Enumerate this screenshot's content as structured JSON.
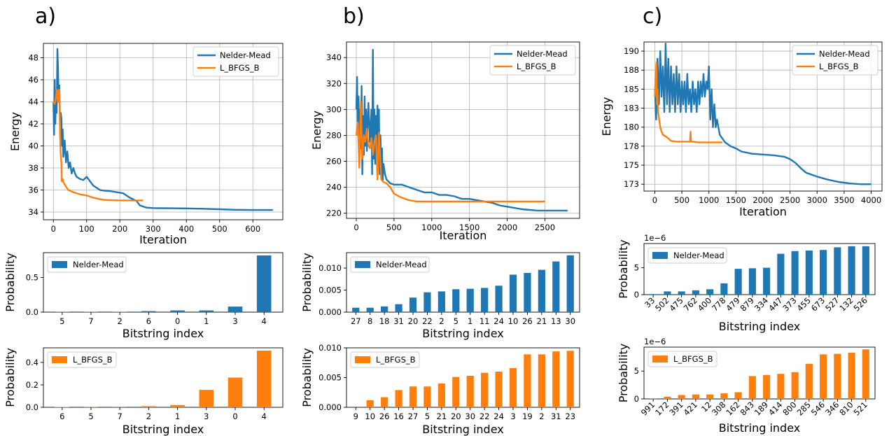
{
  "panel_labels": [
    "a)",
    "b)",
    "c)"
  ],
  "colors": {
    "nelder_mead": "#1f77b4",
    "lbfgsb": "#ff7f0e",
    "grid": "#b0b0b0"
  },
  "chart_data": [
    {
      "id": "a-energy",
      "type": "line",
      "xlabel": "Iteration",
      "ylabel": "Energy",
      "xlim": [
        -30,
        690
      ],
      "ylim": [
        33.3,
        49.3
      ],
      "xticks": [
        0,
        100,
        200,
        300,
        400,
        500,
        600
      ],
      "yticks": [
        34,
        36,
        38,
        40,
        42,
        44,
        46,
        48
      ],
      "grid": true,
      "legend": "top-right",
      "series": [
        {
          "name": "Nelder-Mead",
          "color": "#1f77b4",
          "x": [
            0,
            2,
            4,
            6,
            8,
            10,
            12,
            14,
            16,
            18,
            20,
            22,
            24,
            26,
            28,
            30,
            34,
            38,
            42,
            46,
            50,
            55,
            60,
            65,
            70,
            80,
            90,
            100,
            110,
            120,
            130,
            140,
            150,
            170,
            190,
            210,
            230,
            250,
            260,
            270,
            280,
            290,
            300,
            320,
            350,
            400,
            450,
            500,
            550,
            600,
            660
          ],
          "y": [
            44,
            41,
            46,
            42,
            45,
            43,
            48.8,
            47,
            44,
            45.5,
            42,
            43,
            42.5,
            40,
            41.5,
            39,
            40.5,
            38.5,
            39.5,
            38,
            38.5,
            37.5,
            38,
            37.5,
            37.2,
            37,
            36.9,
            37.2,
            36.8,
            36.4,
            36.2,
            36,
            35.95,
            35.9,
            35.8,
            35.7,
            35.3,
            35,
            34.6,
            34.5,
            34.4,
            34.38,
            34.36,
            34.35,
            34.34,
            34.33,
            34.3,
            34.25,
            34.2,
            34.18,
            34.18
          ]
        },
        {
          "name": "L_BFGS_B",
          "color": "#ff7f0e",
          "x": [
            0,
            4,
            8,
            10,
            13,
            15,
            18,
            20,
            22,
            24,
            25,
            28,
            30,
            34,
            38,
            45,
            60,
            80,
            100,
            120,
            150,
            200,
            240,
            260,
            270
          ],
          "y": [
            44,
            43.8,
            44.5,
            45.1,
            44,
            45,
            45.1,
            41,
            39.3,
            38.5,
            36.8,
            37,
            36.7,
            36.5,
            36.3,
            36,
            35.8,
            35.6,
            35.5,
            35.3,
            35.1,
            35.05,
            35.05,
            35.05,
            35.05
          ]
        }
      ]
    },
    {
      "id": "b-energy",
      "type": "line",
      "xlabel": "Iteration",
      "ylabel": "Energy",
      "xlim": [
        -130,
        2960
      ],
      "ylim": [
        216,
        352
      ],
      "xticks": [
        0,
        500,
        1000,
        1500,
        2000,
        2500
      ],
      "yticks": [
        220,
        240,
        260,
        280,
        300,
        320,
        340
      ],
      "grid": true,
      "legend": "top-right",
      "series": [
        {
          "name": "Nelder-Mead",
          "color": "#1f77b4",
          "x": [
            0,
            10,
            20,
            30,
            40,
            50,
            60,
            70,
            80,
            90,
            100,
            110,
            120,
            130,
            140,
            150,
            160,
            180,
            200,
            210,
            220,
            230,
            240,
            250,
            260,
            270,
            280,
            290,
            300,
            310,
            320,
            330,
            340,
            350,
            360,
            380,
            400,
            450,
            500,
            600,
            700,
            800,
            900,
            1000,
            1100,
            1200,
            1300,
            1400,
            1500,
            1600,
            1700,
            1800,
            1900,
            2000,
            2200,
            2400,
            2600,
            2800
          ],
          "y": [
            300,
            325,
            280,
            310,
            260,
            300,
            270,
            318,
            250,
            295,
            265,
            310,
            272,
            300,
            268,
            290,
            305,
            275,
            300,
            250,
            346,
            262,
            300,
            258,
            295,
            262,
            303,
            265,
            300,
            250,
            280,
            248,
            270,
            245,
            258,
            250,
            246,
            243,
            242,
            242,
            240,
            238,
            236,
            236,
            234,
            234,
            233,
            231,
            231,
            230,
            229,
            228,
            226,
            225,
            223,
            222,
            222,
            222
          ]
        },
        {
          "name": "L_BFGS_B",
          "color": "#ff7f0e",
          "x": [
            0,
            20,
            40,
            60,
            80,
            100,
            120,
            140,
            160,
            180,
            200,
            220,
            240,
            260,
            280,
            300,
            330,
            360,
            400,
            450,
            500,
            600,
            700,
            800,
            1000,
            1200,
            1500,
            2000,
            2500
          ],
          "y": [
            280,
            290,
            255,
            306,
            262,
            280,
            275,
            285,
            272,
            270,
            278,
            265,
            275,
            280,
            246,
            282,
            246,
            244,
            243,
            240,
            235,
            232,
            230,
            229,
            229,
            229,
            229,
            229,
            229
          ]
        }
      ]
    },
    {
      "id": "c-energy",
      "type": "line",
      "xlabel": "Iteration",
      "ylabel": "Energy",
      "xlim": [
        -200,
        4200
      ],
      "ylim": [
        171.6,
        191.2
      ],
      "xticks": [
        0,
        500,
        1000,
        1500,
        2000,
        2500,
        3000,
        3500,
        4000
      ],
      "yticks": [
        172.5,
        175.0,
        177.5,
        180.0,
        182.5,
        185.0,
        187.5,
        190.0
      ],
      "grid": true,
      "legend": "top-right",
      "series": [
        {
          "name": "Nelder-Mead",
          "color": "#1f77b4",
          "x": [
            0,
            25,
            50,
            75,
            100,
            125,
            150,
            175,
            200,
            225,
            250,
            275,
            300,
            325,
            350,
            375,
            400,
            425,
            450,
            475,
            500,
            525,
            550,
            575,
            600,
            625,
            650,
            675,
            700,
            725,
            750,
            775,
            800,
            825,
            850,
            875,
            900,
            925,
            950,
            975,
            1000,
            1025,
            1050,
            1075,
            1100,
            1125,
            1150,
            1200,
            1300,
            1400,
            1500,
            1600,
            1800,
            2000,
            2200,
            2400,
            2500,
            2600,
            2700,
            2800,
            3000,
            3200,
            3400,
            3600,
            3800,
            4000
          ],
          "y": [
            185,
            181,
            189,
            183,
            190,
            184,
            188,
            182,
            191,
            183,
            189,
            182,
            188,
            183,
            187,
            182,
            188,
            183,
            187,
            182,
            186,
            183,
            186,
            182,
            187,
            183,
            185,
            182,
            186,
            183,
            185,
            182,
            186,
            183,
            186,
            184,
            187,
            184,
            186,
            185,
            188,
            181,
            185,
            180,
            183,
            180,
            181,
            179,
            178,
            177.5,
            177.2,
            176.8,
            176.5,
            176.4,
            176.3,
            176.1,
            175.8,
            175.3,
            174.6,
            174,
            173.5,
            173.1,
            172.8,
            172.6,
            172.5,
            172.5
          ]
        },
        {
          "name": "L_BFGS_B",
          "color": "#ff7f0e",
          "x": [
            0,
            10,
            20,
            30,
            40,
            50,
            60,
            70,
            80,
            90,
            100,
            120,
            150,
            200,
            250,
            300,
            400,
            500,
            600,
            650,
            660,
            670,
            700,
            800,
            900,
            1000,
            1100,
            1200,
            1250
          ],
          "y": [
            184,
            186,
            187,
            188.5,
            183,
            185,
            182,
            181.5,
            181,
            180.5,
            180,
            179.5,
            179,
            178.8,
            178.5,
            178.2,
            178.1,
            178.1,
            178.1,
            178.1,
            179.4,
            178.1,
            178.1,
            178,
            178,
            178,
            178,
            178,
            178
          ]
        }
      ]
    },
    {
      "id": "a-nm-bar",
      "type": "bar",
      "xlabel": "Bitstring index",
      "ylabel": "Probability",
      "categories": [
        "5",
        "7",
        "2",
        "6",
        "0",
        "1",
        "3",
        "4"
      ],
      "values": [
        0.005,
        0.005,
        0.005,
        0.015,
        0.025,
        0.025,
        0.08,
        0.82
      ],
      "ylim": [
        0,
        0.86
      ],
      "yticks": [
        0.0,
        0.5
      ],
      "ytick_labels": [
        "0.0",
        "0.5"
      ],
      "legend": "top-left",
      "series_name": "Nelder-Mead",
      "color": "#1f77b4"
    },
    {
      "id": "a-lb-bar",
      "type": "bar",
      "xlabel": "Bitstring index",
      "ylabel": "Probability",
      "categories": [
        "6",
        "5",
        "7",
        "2",
        "1",
        "3",
        "0",
        "4"
      ],
      "values": [
        0.003,
        0.004,
        0.005,
        0.01,
        0.02,
        0.155,
        0.265,
        0.505
      ],
      "ylim": [
        0,
        0.53
      ],
      "yticks": [
        0.0,
        0.2,
        0.4
      ],
      "ytick_labels": [
        "0.0",
        "0.2",
        "0.4"
      ],
      "legend": "top-left",
      "series_name": "L_BFGS_B",
      "color": "#ff7f0e"
    },
    {
      "id": "b-nm-bar",
      "type": "bar",
      "xlabel": "Bitstring index",
      "ylabel": "Probability",
      "categories": [
        "27",
        "8",
        "18",
        "31",
        "20",
        "22",
        "2",
        "5",
        "1",
        "11",
        "24",
        "10",
        "26",
        "21",
        "13",
        "30"
      ],
      "values": [
        0.001,
        0.001,
        0.0013,
        0.0018,
        0.0033,
        0.0045,
        0.0047,
        0.0052,
        0.0053,
        0.0055,
        0.006,
        0.0085,
        0.0089,
        0.0096,
        0.0115,
        0.0129
      ],
      "ylim": [
        0,
        0.0135
      ],
      "yticks": [
        0.0,
        0.005,
        0.01
      ],
      "ytick_labels": [
        "0.000",
        "0.005",
        "0.010"
      ],
      "legend": "top-left",
      "series_name": "Nelder-Mead",
      "color": "#1f77b4"
    },
    {
      "id": "b-lb-bar",
      "type": "bar",
      "xlabel": "Bitstring index",
      "ylabel": "Probability",
      "categories": [
        "9",
        "10",
        "26",
        "16",
        "27",
        "5",
        "21",
        "20",
        "30",
        "22",
        "24",
        "3",
        "19",
        "2",
        "31",
        "23"
      ],
      "values": [
        0.0,
        0.0012,
        0.0017,
        0.0029,
        0.0035,
        0.0035,
        0.004,
        0.0051,
        0.0053,
        0.0058,
        0.006,
        0.0066,
        0.0089,
        0.0089,
        0.0094,
        0.0095
      ],
      "ylim": [
        0,
        0.01
      ],
      "yticks": [
        0.0,
        0.005,
        0.01
      ],
      "ytick_labels": [
        "0.000",
        "0.005",
        "0.010"
      ],
      "legend": "top-left",
      "series_name": "L_BFGS_B",
      "color": "#ff7f0e"
    },
    {
      "id": "c-nm-bar",
      "type": "bar",
      "xlabel": "Bitstring index",
      "ylabel": "Probability",
      "scale_label": "1e−6",
      "categories": [
        "33",
        "502",
        "475",
        "762",
        "400",
        "778",
        "479",
        "879",
        "334",
        "447",
        "373",
        "455",
        "673",
        "527",
        "132",
        "526"
      ],
      "values": [
        0.1,
        0.6,
        0.6,
        0.8,
        1.0,
        2.1,
        4.8,
        4.9,
        5.0,
        7.6,
        8.1,
        8.2,
        8.3,
        8.8,
        9.0,
        9.0
      ],
      "ylim": [
        0,
        9.5
      ],
      "yticks": [
        0,
        5
      ],
      "ytick_labels": [
        "0",
        "5"
      ],
      "rotate_ticks": true,
      "legend": "top-left",
      "series_name": "Nelder-Mead",
      "color": "#1f77b4"
    },
    {
      "id": "c-lb-bar",
      "type": "bar",
      "xlabel": "Bitstring index",
      "ylabel": "Probability",
      "scale_label": "1e−6",
      "categories": [
        "991",
        "172",
        "391",
        "421",
        "12",
        "308",
        "162",
        "843",
        "189",
        "414",
        "800",
        "285",
        "546",
        "346",
        "810",
        "521"
      ],
      "values": [
        0.1,
        0.4,
        0.7,
        0.8,
        0.8,
        1.0,
        1.2,
        4.1,
        4.3,
        4.5,
        4.8,
        6.3,
        8.0,
        8.1,
        8.3,
        8.9
      ],
      "ylim": [
        0,
        9.3
      ],
      "yticks": [
        0,
        5
      ],
      "ytick_labels": [
        "0",
        "5"
      ],
      "rotate_ticks": true,
      "legend": "top-left",
      "series_name": "L_BFGS_B",
      "color": "#ff7f0e"
    }
  ]
}
